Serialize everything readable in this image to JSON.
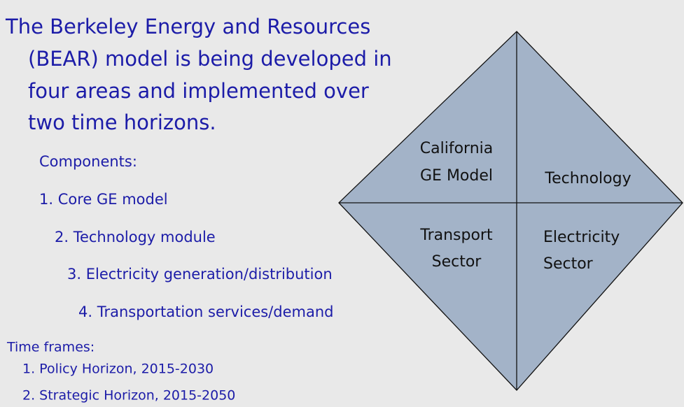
{
  "slide": {
    "intro_lines": [
      "The Berkeley Energy and Resources",
      "(BEAR) model is being developed in",
      "four areas and implemented over",
      "two time horizons."
    ],
    "components_heading": "Components:",
    "components": [
      "1. Core GE model",
      "2. Technology module",
      "3. Electricity generation/distribution",
      "4. Transportation services/demand"
    ],
    "time_frames_heading": "Time frames:",
    "time_frames": [
      "1. Policy Horizon, 2015-2030",
      "2. Strategic Horizon, 2015-2050"
    ],
    "diamond": {
      "top_left": [
        "California",
        "GE Model"
      ],
      "top_right": [
        "Technology"
      ],
      "bottom_left": [
        "Transport",
        "Sector"
      ],
      "bottom_right": [
        "Electricity",
        "Sector"
      ]
    }
  }
}
